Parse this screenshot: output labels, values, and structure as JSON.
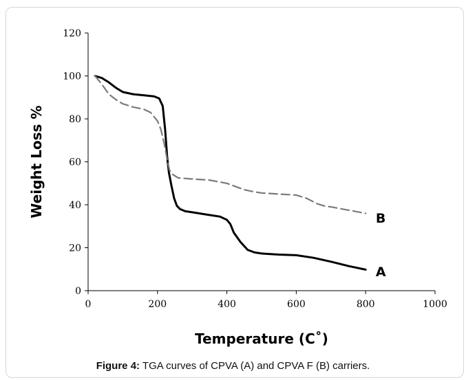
{
  "chart_data": {
    "type": "line",
    "xlabel": "Temperature (C˚)",
    "ylabel": "Weight Loss %",
    "xlim": [
      0,
      1000
    ],
    "ylim": [
      0,
      120
    ],
    "xticks": [
      0,
      200,
      400,
      600,
      800,
      1000
    ],
    "yticks": [
      0,
      20,
      40,
      60,
      80,
      100,
      120
    ],
    "grid": false,
    "series": [
      {
        "name": "A",
        "style": "solid",
        "color": "#000000",
        "x": [
          20,
          40,
          60,
          80,
          100,
          130,
          160,
          190,
          205,
          215,
          222,
          228,
          233,
          240,
          248,
          256,
          265,
          280,
          300,
          340,
          380,
          400,
          410,
          420,
          440,
          460,
          480,
          500,
          550,
          600,
          650,
          700,
          750,
          800
        ],
        "y": [
          100,
          99,
          97,
          94.5,
          92.5,
          91.5,
          91,
          90.5,
          89.5,
          86,
          75,
          62,
          55,
          49,
          43,
          39.5,
          38,
          37,
          36.5,
          35.5,
          34.5,
          33,
          31,
          27,
          22.5,
          19,
          17.8,
          17.3,
          16.8,
          16.5,
          15.3,
          13.5,
          11.5,
          9.8
        ]
      },
      {
        "name": "B",
        "style": "dashed",
        "color": "#7a7a7a",
        "x": [
          20,
          40,
          60,
          80,
          100,
          130,
          160,
          180,
          200,
          210,
          220,
          228,
          235,
          245,
          260,
          300,
          350,
          400,
          450,
          480,
          500,
          550,
          600,
          630,
          660,
          680,
          700,
          750,
          800
        ],
        "y": [
          100,
          96,
          91.5,
          89,
          87,
          85.5,
          84.5,
          83,
          79,
          75,
          68,
          61,
          56,
          54,
          52.5,
          52,
          51.5,
          50,
          47,
          46,
          45.5,
          45,
          44.5,
          43,
          40.5,
          39.5,
          39,
          37.5,
          36
        ]
      }
    ],
    "annotations": [
      {
        "text": "A",
        "x": 845,
        "y": 9
      },
      {
        "text": "B",
        "x": 845,
        "y": 34
      }
    ]
  },
  "caption": {
    "label": "Figure 4:",
    "text": " TGA curves of CPVA (A) and CPVA F (B) carriers."
  }
}
